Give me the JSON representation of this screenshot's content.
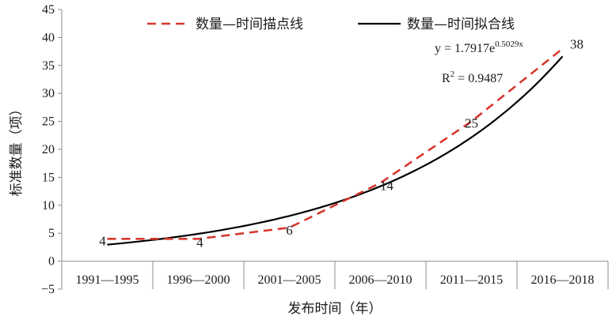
{
  "chart_data": {
    "type": "line",
    "categories": [
      "1991—1995",
      "1996—2000",
      "2001—2005",
      "2006—2010",
      "2011—2015",
      "2016—2018"
    ],
    "series": [
      {
        "name": "数量—时间描点线",
        "values": [
          4,
          4,
          6,
          14,
          25,
          38
        ],
        "color": "#d6382f",
        "style": "dashed"
      },
      {
        "name": "数量—时间拟合线",
        "color": "#000000",
        "style": "solid",
        "fit": {
          "a": 1.7917,
          "b": 0.5029
        }
      }
    ],
    "data_labels": [
      "4",
      "4",
      "6",
      "14",
      "25",
      "38"
    ],
    "xlabel": "发布时间（年）",
    "ylabel": "标准数量（项）",
    "ylim": [
      -5,
      45
    ],
    "yticks": [
      -5,
      0,
      5,
      10,
      15,
      20,
      25,
      30,
      35,
      40,
      45
    ],
    "yticks_text": [
      "−5",
      "0",
      "5",
      "10",
      "15",
      "20",
      "25",
      "30",
      "35",
      "40",
      "45"
    ],
    "grid": false,
    "legend": "top",
    "annotations": {
      "equation_base": "y = 1.7917e",
      "equation_exp": "0.5029x",
      "r2_base": "R",
      "r2_sup": "2",
      "r2_value": " = 0.9487"
    }
  }
}
